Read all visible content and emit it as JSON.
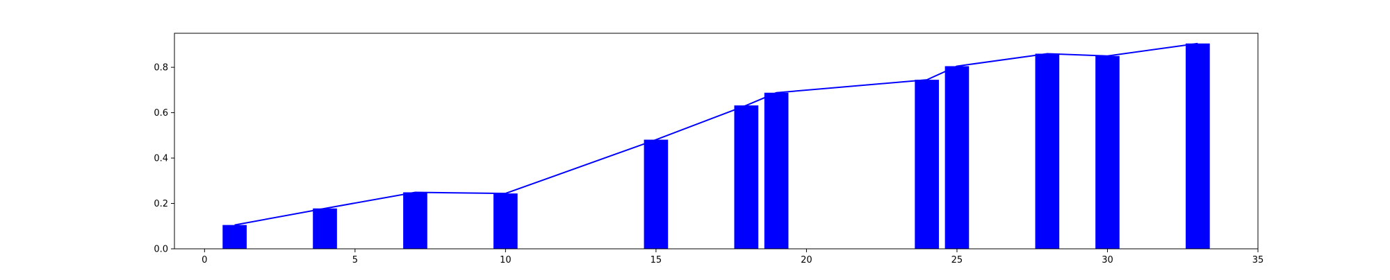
{
  "chart_data": {
    "type": "bar",
    "x": [
      1,
      4,
      7,
      10,
      15,
      18,
      19,
      24,
      25,
      28,
      30,
      33
    ],
    "series": [
      {
        "type": "bar",
        "values": [
          0.105,
          0.178,
          0.249,
          0.244,
          0.481,
          0.632,
          0.688,
          0.745,
          0.805,
          0.86,
          0.85,
          0.905
        ],
        "color": "#0000ff"
      },
      {
        "type": "line",
        "values": [
          0.105,
          0.178,
          0.249,
          0.244,
          0.481,
          0.632,
          0.688,
          0.745,
          0.805,
          0.86,
          0.85,
          0.905
        ],
        "color": "#0000ff"
      }
    ],
    "title": "",
    "xlabel": "",
    "ylabel": "",
    "xlim": [
      -1,
      35
    ],
    "ylim": [
      0,
      0.95
    ],
    "xticks": [
      0,
      5,
      10,
      15,
      20,
      25,
      30,
      35
    ],
    "yticks": [
      0.0,
      0.2,
      0.4,
      0.6,
      0.8
    ],
    "xtick_labels": [
      "0",
      "5",
      "10",
      "15",
      "20",
      "25",
      "30",
      "35"
    ],
    "ytick_labels": [
      "0.0",
      "0.2",
      "0.4",
      "0.6",
      "0.8"
    ],
    "bar_width": 0.8,
    "grid": false,
    "legend": "none"
  }
}
